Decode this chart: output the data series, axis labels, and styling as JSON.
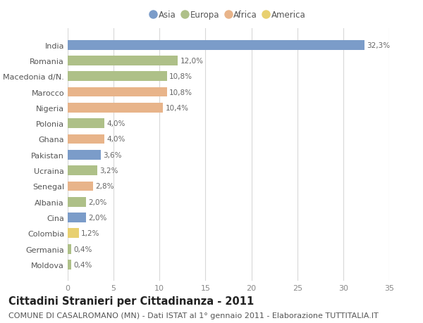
{
  "categories": [
    "Moldova",
    "Germania",
    "Colombia",
    "Cina",
    "Albania",
    "Senegal",
    "Ucraina",
    "Pakistan",
    "Ghana",
    "Polonia",
    "Nigeria",
    "Marocco",
    "Macedonia d/N.",
    "Romania",
    "India"
  ],
  "values": [
    0.4,
    0.4,
    1.2,
    2.0,
    2.0,
    2.8,
    3.2,
    3.6,
    4.0,
    4.0,
    10.4,
    10.8,
    10.8,
    12.0,
    32.3
  ],
  "labels": [
    "0,4%",
    "0,4%",
    "1,2%",
    "2,0%",
    "2,0%",
    "2,8%",
    "3,2%",
    "3,6%",
    "4,0%",
    "4,0%",
    "10,4%",
    "10,8%",
    "10,8%",
    "12,0%",
    "32,3%"
  ],
  "continents": [
    "Europa",
    "Europa",
    "America",
    "Asia",
    "Europa",
    "Africa",
    "Europa",
    "Asia",
    "Africa",
    "Europa",
    "Africa",
    "Africa",
    "Europa",
    "Europa",
    "Asia"
  ],
  "continent_colors": {
    "Asia": "#7b9cc9",
    "Europa": "#aec088",
    "Africa": "#e8b48a",
    "America": "#e8d070"
  },
  "legend_order": [
    "Asia",
    "Europa",
    "Africa",
    "America"
  ],
  "title": "Cittadini Stranieri per Cittadinanza - 2011",
  "subtitle": "COMUNE DI CASALROMANO (MN) - Dati ISTAT al 1° gennaio 2011 - Elaborazione TUTTITALIA.IT",
  "xlim": [
    0,
    35
  ],
  "xticks": [
    0,
    5,
    10,
    15,
    20,
    25,
    30,
    35
  ],
  "background_color": "#ffffff",
  "grid_color": "#d8d8d8",
  "bar_height": 0.62,
  "title_fontsize": 10.5,
  "subtitle_fontsize": 8,
  "label_fontsize": 7.5,
  "tick_fontsize": 8,
  "legend_fontsize": 8.5
}
